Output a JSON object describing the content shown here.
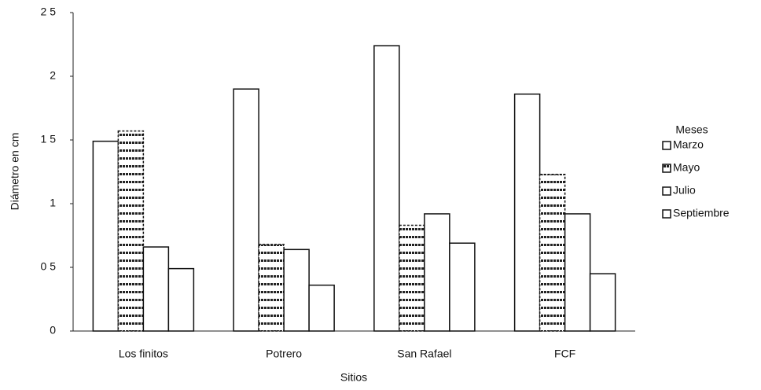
{
  "chart_data": {
    "type": "bar",
    "categories": [
      "Los finitos",
      "Potrero",
      "San Rafael",
      "FCF"
    ],
    "series": [
      {
        "name": "Marzo",
        "color": "#ffffff",
        "values": [
          1.49,
          1.9,
          2.24,
          1.86
        ]
      },
      {
        "name": "Mayo",
        "color": "#ffffff",
        "pattern": "dotted",
        "values": [
          1.57,
          0.68,
          0.83,
          1.23
        ]
      },
      {
        "name": "Julio",
        "color": "#ffffff",
        "values": [
          0.66,
          0.64,
          0.92,
          0.92
        ]
      },
      {
        "name": "Septiembre",
        "color": "#ffffff",
        "values": [
          0.49,
          0.36,
          0.69,
          0.45
        ]
      }
    ],
    "ylim": [
      0,
      2.5
    ],
    "yticks": [
      0,
      {
        "value": 0.5,
        "label": "0 5"
      },
      1,
      {
        "value": 1.5,
        "label": "1 5"
      },
      2,
      {
        "value": 2.5,
        "label": "2 5"
      }
    ],
    "x_label": "Sitios",
    "y_label": "Diámetro en cm",
    "legend_title": "Meses",
    "legend": "right",
    "grid": false
  }
}
